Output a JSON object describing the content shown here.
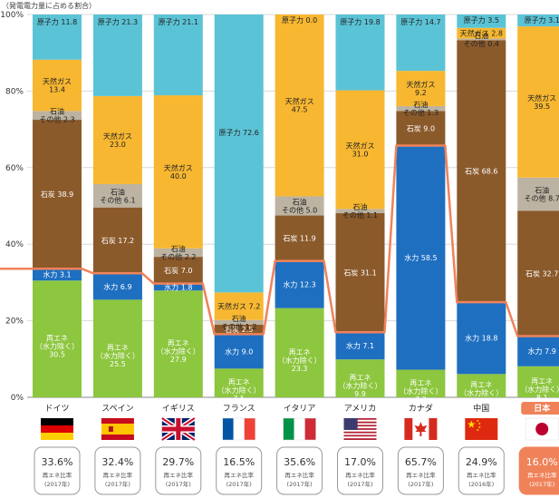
{
  "chart_data": {
    "type": "bar",
    "stacked": true,
    "unit_label": "（発電電力量に占める割合）",
    "ylim": [
      0,
      100
    ],
    "yticks": [
      "0%",
      "20%",
      "40%",
      "60%",
      "80%",
      "100%"
    ],
    "grid": true,
    "highlight_country": "日本",
    "colors": {
      "renewable": "#8DC63F",
      "hydro": "#1E6FC0",
      "coal": "#8B5A2B",
      "oil": "#BDB3A2",
      "gas": "#F7B731",
      "nuclear": "#5BC3D6",
      "line": "#F0825A"
    },
    "countries": [
      {
        "name": "ドイツ",
        "flag": "germany",
        "ratio": "33.6%",
        "ratio_caption": "再エネ比率",
        "ratio_year": "(2017年)",
        "segments": [
          {
            "key": "renewable",
            "label": "再エネ\n（水力除く）\n30.5",
            "value": 30.5
          },
          {
            "key": "hydro",
            "label": "水力 3.1",
            "value": 3.1
          },
          {
            "key": "coal",
            "label": "石炭 38.9",
            "value": 38.9
          },
          {
            "key": "oil",
            "label": "石油\nその他 2.3",
            "value": 2.3
          },
          {
            "key": "gas",
            "label": "天然ガス\n13.4",
            "value": 13.4
          },
          {
            "key": "nuclear",
            "label": "原子力 11.8",
            "value": 11.8
          }
        ]
      },
      {
        "name": "スペイン",
        "flag": "spain",
        "ratio": "32.4%",
        "ratio_caption": "再エネ比率",
        "ratio_year": "(2017年)",
        "segments": [
          {
            "key": "renewable",
            "label": "再エネ\n（水力除く）\n25.5",
            "value": 25.5
          },
          {
            "key": "hydro",
            "label": "水力 6.9",
            "value": 6.9
          },
          {
            "key": "coal",
            "label": "石炭 17.2",
            "value": 17.2
          },
          {
            "key": "oil",
            "label": "石油\nその他 6.1",
            "value": 6.1
          },
          {
            "key": "gas",
            "label": "天然ガス\n23.0",
            "value": 23.0
          },
          {
            "key": "nuclear",
            "label": "原子力 21.3",
            "value": 21.3
          }
        ]
      },
      {
        "name": "イギリス",
        "flag": "uk",
        "ratio": "29.7%",
        "ratio_caption": "再エネ比率",
        "ratio_year": "(2017年)",
        "segments": [
          {
            "key": "renewable",
            "label": "再エネ\n（水力除く）\n27.9",
            "value": 27.9
          },
          {
            "key": "hydro",
            "label": "水力 1.8",
            "value": 1.8
          },
          {
            "key": "coal",
            "label": "石炭 7.0",
            "value": 7.0
          },
          {
            "key": "oil",
            "label": "石油\nその他 2.2",
            "value": 2.2
          },
          {
            "key": "gas",
            "label": "天然ガス\n40.0",
            "value": 40.0
          },
          {
            "key": "nuclear",
            "label": "原子力 21.1",
            "value": 21.1
          }
        ]
      },
      {
        "name": "フランス",
        "flag": "france",
        "ratio": "16.5%",
        "ratio_caption": "再エネ比率",
        "ratio_year": "(2017年)",
        "segments": [
          {
            "key": "renewable",
            "label": "再エネ\n（水力除く）\n7.5",
            "value": 7.5
          },
          {
            "key": "hydro",
            "label": "水力 9.0",
            "value": 9.0
          },
          {
            "key": "coal",
            "label": "石炭 2.5",
            "value": 2.5
          },
          {
            "key": "oil",
            "label": "石油\nその他 1.2",
            "value": 1.2
          },
          {
            "key": "gas",
            "label": "天然ガス 7.2",
            "value": 7.2
          },
          {
            "key": "nuclear",
            "label": "原子力 72.6",
            "value": 72.6
          }
        ]
      },
      {
        "name": "イタリア",
        "flag": "italy",
        "ratio": "35.6%",
        "ratio_caption": "再エネ比率",
        "ratio_year": "(2017年)",
        "segments": [
          {
            "key": "renewable",
            "label": "再エネ\n（水力除く）\n23.3",
            "value": 23.3
          },
          {
            "key": "hydro",
            "label": "水力 12.3",
            "value": 12.3
          },
          {
            "key": "coal",
            "label": "石炭 11.9",
            "value": 11.9
          },
          {
            "key": "oil",
            "label": "石油\nその他 5.0",
            "value": 5.0
          },
          {
            "key": "gas",
            "label": "天然ガス\n47.5",
            "value": 47.5
          },
          {
            "key": "nuclear",
            "label": "原子力 0.0",
            "value": 0.0
          }
        ]
      },
      {
        "name": "アメリカ",
        "flag": "usa",
        "ratio": "17.0%",
        "ratio_caption": "再エネ比率",
        "ratio_year": "(2017年)",
        "segments": [
          {
            "key": "renewable",
            "label": "再エネ\n（水力除く）\n9.9",
            "value": 9.9
          },
          {
            "key": "hydro",
            "label": "水力 7.1",
            "value": 7.1
          },
          {
            "key": "coal",
            "label": "石炭 31.1",
            "value": 31.1
          },
          {
            "key": "oil",
            "label": "石油\nその他 1.1",
            "value": 1.1
          },
          {
            "key": "gas",
            "label": "天然ガス\n31.0",
            "value": 31.0
          },
          {
            "key": "nuclear",
            "label": "原子力 19.8",
            "value": 19.8
          }
        ]
      },
      {
        "name": "カナダ",
        "flag": "canada",
        "ratio": "65.7%",
        "ratio_caption": "再エネ比率",
        "ratio_year": "(2017年)",
        "segments": [
          {
            "key": "renewable",
            "label": "再エネ\n（水力除く）\n7.2",
            "value": 7.2
          },
          {
            "key": "hydro",
            "label": "水力 58.5",
            "value": 58.5
          },
          {
            "key": "coal",
            "label": "石炭 9.0",
            "value": 9.0
          },
          {
            "key": "oil",
            "label": "石油\nその他 1.3",
            "value": 1.3
          },
          {
            "key": "gas",
            "label": "天然ガス\n9.2",
            "value": 9.2
          },
          {
            "key": "nuclear",
            "label": "原子力 14.7",
            "value": 14.7
          }
        ]
      },
      {
        "name": "中国",
        "flag": "china",
        "ratio": "24.9%",
        "ratio_caption": "再エネ比率",
        "ratio_year": "(2016年)",
        "segments": [
          {
            "key": "renewable",
            "label": "再エネ\n（水力除く）\n6.1",
            "value": 6.1
          },
          {
            "key": "hydro",
            "label": "水力 18.8",
            "value": 18.8
          },
          {
            "key": "coal",
            "label": "石炭 68.6",
            "value": 68.6
          },
          {
            "key": "oil",
            "label": "石油\nその他 0.4",
            "value": 0.4
          },
          {
            "key": "gas",
            "label": "天然ガス 2.8",
            "value": 2.8
          },
          {
            "key": "nuclear",
            "label": "原子力 3.5",
            "value": 3.5
          }
        ]
      },
      {
        "name": "日本",
        "flag": "japan",
        "ratio": "16.0%",
        "ratio_caption": "再エネ比率",
        "ratio_year": "(2017年)",
        "segments": [
          {
            "key": "renewable",
            "label": "再エネ\n（水力除く）\n8.1",
            "value": 8.1
          },
          {
            "key": "hydro",
            "label": "水力 7.9",
            "value": 7.9
          },
          {
            "key": "coal",
            "label": "石炭 32.7",
            "value": 32.7
          },
          {
            "key": "oil",
            "label": "石油\nその他 8.7",
            "value": 8.7
          },
          {
            "key": "gas",
            "label": "天然ガス\n39.5",
            "value": 39.5
          },
          {
            "key": "nuclear",
            "label": "原子力 3.1",
            "value": 3.1
          }
        ]
      }
    ]
  }
}
